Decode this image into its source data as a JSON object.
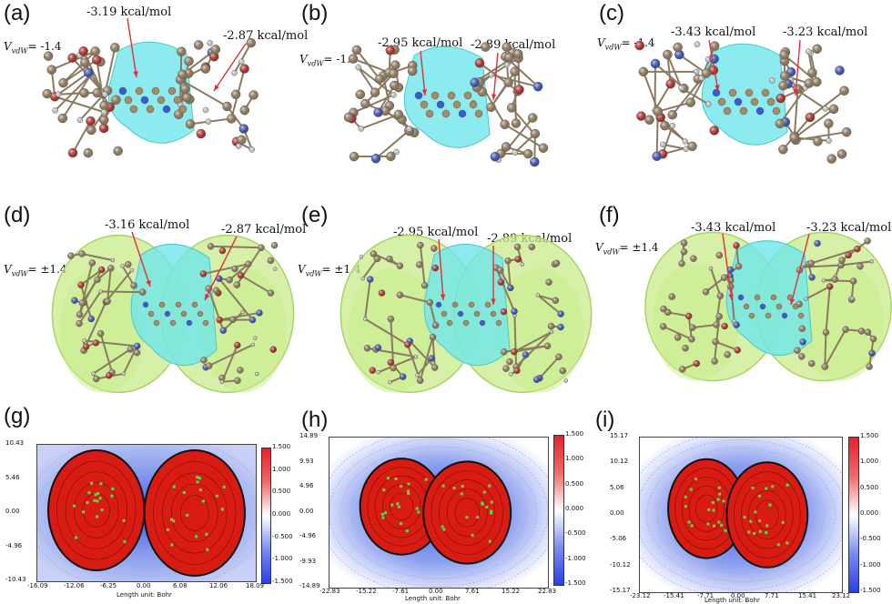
{
  "panels": {
    "a": {
      "label": "(a)",
      "left_energy": "-3.19 kcal/mol",
      "right_energy": "-2.87 kcal/mol",
      "vdw_symbol": "V",
      "vdw_sub": "vdW",
      "vdw_value": "= -1.4"
    },
    "b": {
      "label": "(b)",
      "left_energy": "-2.95 kcal/mol",
      "right_energy": "-2.89 kcal/mol",
      "vdw_symbol": "V",
      "vdw_sub": "vdW",
      "vdw_value": "= -1.4"
    },
    "c": {
      "label": "(c)",
      "left_energy": "-3.43 kcal/mol",
      "right_energy": "-3.23 kcal/mol",
      "vdw_symbol": "V",
      "vdw_sub": "vdW",
      "vdw_value": "= -1.4"
    },
    "d": {
      "label": "(d)",
      "left_energy": "-3.16 kcal/mol",
      "right_energy": "-2.87 kcal/mol",
      "vdw_symbol": "V",
      "vdw_sub": "vdW",
      "vdw_value": "= ±1.4"
    },
    "e": {
      "label": "(e)",
      "left_energy": "-2.95 kcal/mol",
      "right_energy": "-2.89 kcal/mol",
      "vdw_symbol": "V",
      "vdw_sub": "vdW",
      "vdw_value": "= ±1.4"
    },
    "f": {
      "label": "(f)",
      "left_energy": "-3.43 kcal/mol",
      "right_energy": "-3.23 kcal/mol",
      "vdw_symbol": "V",
      "vdw_sub": "vdW",
      "vdw_value": "= ±1.4"
    },
    "g": {
      "label": "(g)",
      "yticks": [
        "10.43",
        "5.46",
        "0.00",
        "-4.96",
        "-10.43"
      ],
      "xticks": [
        "-16.09",
        "-12.06",
        "-6.25",
        "0.00",
        "6.08",
        "12.06",
        "18.09"
      ],
      "cbticks": [
        "1.500",
        "1.000",
        "0.500",
        "0.000",
        "-0.500",
        "-1.000",
        "-1.500"
      ],
      "unit": "Length unit: Bohr"
    },
    "h": {
      "label": "(h)",
      "yticks": [
        "14.89",
        "9.93",
        "4.96",
        "0.00",
        "-4.96",
        "-9.93",
        "-14.89"
      ],
      "xticks": [
        "-22.83",
        "-15.22",
        "-7.61",
        "0.00",
        "7.61",
        "15.22",
        "22.83"
      ],
      "cbticks": [
        "1.500",
        "1.000",
        "0.500",
        "0.000",
        "-0.500",
        "-1.000",
        "-1.500"
      ],
      "unit": "Length unit: Bohr"
    },
    "i": {
      "label": "(i)",
      "yticks": [
        "15.17",
        "10.12",
        "5.06",
        "0.00",
        "-5.06",
        "-10.12",
        "-15.17"
      ],
      "xticks": [
        "-23.12",
        "-15.41",
        "-7.71",
        "0.00",
        "7.71",
        "15.41",
        "23.12"
      ],
      "cbticks": [
        "1.500",
        "1.000",
        "0.500",
        "0.000",
        "-0.500",
        "-1.000",
        "-1.500"
      ],
      "unit": "Length unit: Bohr"
    }
  },
  "colors": {
    "surface_cyan": "#6fe6ea",
    "surface_green": "#c8ec8a",
    "atom_carbon": "#a88a64",
    "atom_oxygen": "#d42a22",
    "atom_nitrogen": "#3a5ad8",
    "atom_hydrogen": "#f2f2f2",
    "arrow": "#e0303a",
    "map_red": "#d81c14",
    "map_blue": "#3e62e6",
    "grid_point": "#4ee04a"
  }
}
